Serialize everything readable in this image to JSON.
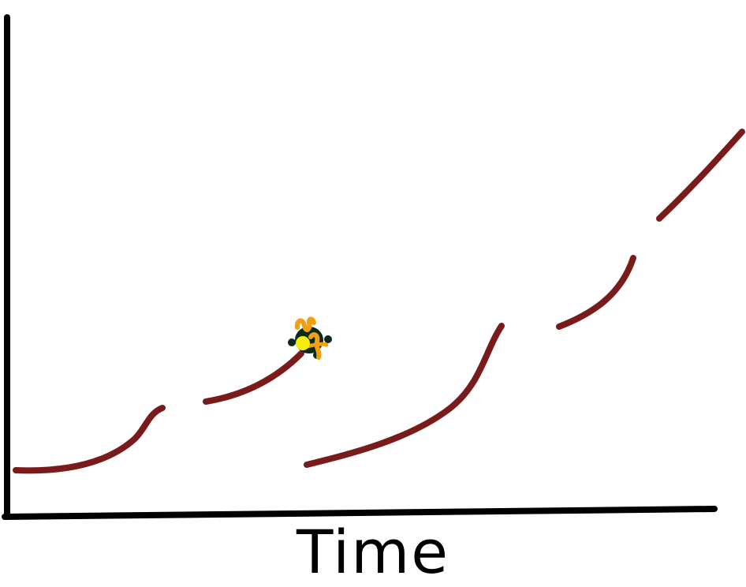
{
  "diagram": {
    "x_axis_label": "Time",
    "colors": {
      "axis": "#000000",
      "curve": "#7a1b1b",
      "marker_dark": "#0b2a1a",
      "marker_orange": "#f0a010",
      "marker_yellow": "#f5ef10"
    },
    "segments": [
      "segment-1",
      "segment-2",
      "segment-3",
      "segment-4",
      "segment-5",
      "segment-6"
    ],
    "marker_icon": "turtle-icon"
  }
}
